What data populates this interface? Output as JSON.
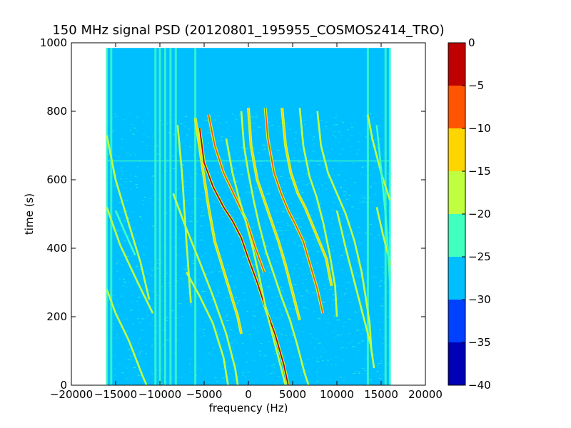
{
  "chart_data": {
    "type": "heatmap",
    "title": "150 MHz signal PSD (20120801_195955_COSMOS2414_TRO)",
    "xlabel": "frequency (Hz)",
    "ylabel": "time (s)",
    "xlim": [
      -20000,
      20000
    ],
    "ylim": [
      0,
      1000
    ],
    "x_ticks": [
      "−20000",
      "−15000",
      "−10000",
      "−5000",
      "0",
      "5000",
      "10000",
      "15000",
      "20000"
    ],
    "x_tick_values": [
      -20000,
      -15000,
      -10000,
      -5000,
      0,
      5000,
      10000,
      15000,
      20000
    ],
    "y_ticks": [
      "0",
      "200",
      "400",
      "600",
      "800",
      "1000"
    ],
    "y_tick_values": [
      0,
      200,
      400,
      600,
      800,
      1000
    ],
    "data_extent": {
      "x": [
        -16000,
        16000
      ],
      "y": [
        0,
        985
      ]
    },
    "colorbar": {
      "levels": [
        -40,
        -35,
        -30,
        -25,
        -20,
        -15,
        -10,
        -5,
        0
      ],
      "tick_labels": [
        "0",
        "−5",
        "−10",
        "−15",
        "−20",
        "−25",
        "−30",
        "−35",
        "−40"
      ],
      "tick_values": [
        0,
        -5,
        -10,
        -15,
        -20,
        -25,
        -30,
        -35,
        -40
      ],
      "colors": [
        "#0000b5",
        "#0040ff",
        "#00bfff",
        "#40ffbf",
        "#bfff40",
        "#ffd500",
        "#ff5500",
        "#bf0000"
      ]
    },
    "background_level_color": "#00bfff",
    "grid": false,
    "vertical_bands_hz": [
      -16000,
      -15500,
      -10500,
      -10000,
      -9400,
      -8800,
      -8200,
      -6000,
      13500,
      15500,
      16000
    ],
    "horizontal_line_time": 655,
    "traces": [
      {
        "points": [
          [
            -16000,
            730
          ],
          [
            -15000,
            600
          ],
          [
            -13500,
            470
          ],
          [
            -12200,
            360
          ],
          [
            -11200,
            250
          ]
        ],
        "level": -20
      },
      {
        "points": [
          [
            -16000,
            520
          ],
          [
            -14500,
            410
          ],
          [
            -12500,
            300
          ],
          [
            -10800,
            210
          ]
        ],
        "level": -20
      },
      {
        "points": [
          [
            -16000,
            280
          ],
          [
            -15000,
            210
          ],
          [
            -13500,
            130
          ],
          [
            -12000,
            30
          ],
          [
            -11500,
            0
          ]
        ],
        "level": -20
      },
      {
        "points": [
          [
            -15000,
            510
          ],
          [
            -14000,
            450
          ],
          [
            -12800,
            380
          ]
        ],
        "level": -22
      },
      {
        "points": [
          [
            -8000,
            760
          ],
          [
            -7500,
            620
          ],
          [
            -7000,
            420
          ],
          [
            -6500,
            240
          ]
        ],
        "level": -20
      },
      {
        "points": [
          [
            -8500,
            560
          ],
          [
            -7200,
            470
          ],
          [
            -5500,
            360
          ],
          [
            -4000,
            260
          ],
          [
            -2500,
            150
          ],
          [
            -1500,
            50
          ],
          [
            -1200,
            0
          ]
        ],
        "level": -20
      },
      {
        "points": [
          [
            -7000,
            330
          ],
          [
            -5500,
            260
          ],
          [
            -4000,
            180
          ],
          [
            -2800,
            80
          ],
          [
            -2300,
            0
          ]
        ],
        "level": -20
      },
      {
        "points": [
          [
            -6000,
            780
          ],
          [
            -5200,
            640
          ],
          [
            -4500,
            520
          ],
          [
            -3800,
            420
          ],
          [
            -2500,
            310
          ],
          [
            -1200,
            200
          ],
          [
            -800,
            150
          ]
        ],
        "level": -12
      },
      {
        "points": [
          [
            -5500,
            750
          ],
          [
            -5000,
            650
          ],
          [
            -4000,
            580
          ],
          [
            -2800,
            520
          ],
          [
            -1800,
            480
          ],
          [
            -800,
            430
          ],
          [
            0,
            370
          ],
          [
            1000,
            300
          ],
          [
            2000,
            220
          ],
          [
            3000,
            150
          ],
          [
            4000,
            60
          ],
          [
            4500,
            0
          ]
        ],
        "level": -5
      },
      {
        "points": [
          [
            -4500,
            790
          ],
          [
            -3800,
            700
          ],
          [
            -2800,
            620
          ],
          [
            -1500,
            550
          ],
          [
            -200,
            480
          ],
          [
            800,
            400
          ],
          [
            1800,
            330
          ]
        ],
        "level": -8
      },
      {
        "points": [
          [
            -2500,
            720
          ],
          [
            -1800,
            620
          ],
          [
            -1000,
            540
          ],
          [
            -200,
            470
          ],
          [
            500,
            400
          ],
          [
            1200,
            320
          ],
          [
            2000,
            220
          ],
          [
            3000,
            120
          ],
          [
            3800,
            40
          ],
          [
            4200,
            0
          ]
        ],
        "level": -18
      },
      {
        "points": [
          [
            -800,
            800
          ],
          [
            -500,
            700
          ],
          [
            0,
            620
          ],
          [
            600,
            540
          ],
          [
            1200,
            470
          ],
          [
            2000,
            390
          ],
          [
            2800,
            330
          ],
          [
            3700,
            260
          ],
          [
            4700,
            190
          ],
          [
            5500,
            120
          ],
          [
            6300,
            40
          ],
          [
            6800,
            0
          ]
        ],
        "level": -20
      },
      {
        "points": [
          [
            0,
            810
          ],
          [
            300,
            700
          ],
          [
            1000,
            600
          ],
          [
            1800,
            540
          ],
          [
            2600,
            480
          ],
          [
            3400,
            420
          ],
          [
            4200,
            350
          ],
          [
            5000,
            270
          ],
          [
            5800,
            190
          ]
        ],
        "level": -12
      },
      {
        "points": [
          [
            1900,
            810
          ],
          [
            2200,
            720
          ],
          [
            2900,
            620
          ],
          [
            3700,
            560
          ],
          [
            4500,
            510
          ],
          [
            5300,
            470
          ],
          [
            6200,
            420
          ],
          [
            7000,
            350
          ],
          [
            7800,
            280
          ],
          [
            8400,
            210
          ]
        ],
        "level": -8
      },
      {
        "points": [
          [
            3800,
            810
          ],
          [
            4200,
            700
          ],
          [
            4800,
            620
          ],
          [
            5600,
            560
          ],
          [
            6400,
            520
          ],
          [
            7200,
            470
          ],
          [
            8000,
            420
          ],
          [
            8800,
            370
          ],
          [
            9400,
            290
          ]
        ],
        "level": -12
      },
      {
        "points": [
          [
            5800,
            810
          ],
          [
            6200,
            700
          ],
          [
            6900,
            610
          ],
          [
            7700,
            550
          ],
          [
            8500,
            470
          ],
          [
            9200,
            380
          ],
          [
            9800,
            290
          ],
          [
            10000,
            200
          ]
        ],
        "level": -18
      },
      {
        "points": [
          [
            7800,
            800
          ],
          [
            8200,
            700
          ],
          [
            9000,
            620
          ],
          [
            10000,
            560
          ],
          [
            11000,
            500
          ],
          [
            12000,
            420
          ],
          [
            12800,
            330
          ],
          [
            13300,
            250
          ],
          [
            13700,
            180
          ],
          [
            13900,
            100
          ]
        ],
        "level": -20
      },
      {
        "points": [
          [
            10000,
            510
          ],
          [
            11000,
            400
          ],
          [
            12000,
            300
          ],
          [
            13000,
            200
          ],
          [
            13800,
            120
          ],
          [
            14200,
            50
          ]
        ],
        "level": -20
      },
      {
        "points": [
          [
            13500,
            790
          ],
          [
            14000,
            720
          ],
          [
            15000,
            620
          ],
          [
            16000,
            540
          ]
        ],
        "level": -20
      },
      {
        "points": [
          [
            14500,
            520
          ],
          [
            15200,
            440
          ],
          [
            15800,
            380
          ],
          [
            16000,
            350
          ]
        ],
        "level": -20
      },
      {
        "points": [
          [
            14500,
            760
          ],
          [
            15500,
            500
          ],
          [
            16000,
            300
          ]
        ],
        "level": -22
      }
    ]
  }
}
